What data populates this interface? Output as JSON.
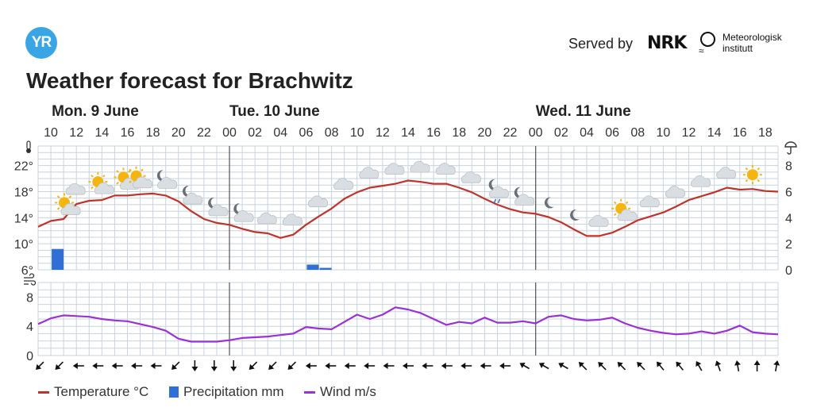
{
  "header": {
    "logo_text": "YR",
    "served_by": "Served by",
    "nrk_text": "NRK",
    "met_line1": "Meteorologisk",
    "met_line2": "institutt",
    "title": "Weather forecast for Brachwitz"
  },
  "legend": {
    "temperature": "Temperature °C",
    "precipitation": "Precipitation mm",
    "wind": "Wind m/s"
  },
  "colors": {
    "temperature": "#c0332b",
    "precipitation": "#2f6fd6",
    "wind": "#9b30d9",
    "grid": "#c8d3dc",
    "day_divider": "#555555",
    "sun": "#f5b50e",
    "cloud": "#d9dee3",
    "moon": "#6a6f75"
  },
  "chart_data": [
    {
      "type": "line",
      "title": "",
      "x_unit": "hour",
      "day_labels": [
        {
          "label": "Mon. 9 June",
          "start_hour": 10
        },
        {
          "label": "Tue. 10 June",
          "start_hour": 24
        },
        {
          "label": "Wed. 11 June",
          "start_hour": 48
        }
      ],
      "x_ticks": [
        "10",
        "12",
        "14",
        "16",
        "18",
        "20",
        "22",
        "00",
        "02",
        "04",
        "06",
        "08",
        "10",
        "12",
        "14",
        "16",
        "18",
        "20",
        "22",
        "00",
        "02",
        "04",
        "06",
        "08",
        "10",
        "12",
        "14",
        "16",
        "18"
      ],
      "ylim": [
        6,
        25
      ],
      "y_ticks": [
        6,
        10,
        14,
        18,
        22
      ],
      "y_tick_labels": [
        "6°",
        "10°",
        "14°",
        "18°",
        "22°"
      ],
      "y2lim": [
        0,
        9.5
      ],
      "y2_ticks": [
        0,
        2,
        4,
        6,
        8
      ],
      "y2_tick_labels": [
        "0",
        "2",
        "4",
        "6",
        "8"
      ],
      "y_axis_icons": [
        "thermometer-icon",
        "umbrella-icon"
      ],
      "grid": true,
      "legend_position": "bottom-left",
      "series": [
        {
          "name": "Temperature °C",
          "kind": "line",
          "axis": "left",
          "x": [
            9,
            10,
            11,
            12,
            13,
            14,
            15,
            16,
            17,
            18,
            19,
            20,
            21,
            22,
            23,
            24,
            25,
            26,
            27,
            28,
            29,
            30,
            31,
            32,
            33,
            34,
            35,
            36,
            37,
            38,
            39,
            40,
            41,
            42,
            43,
            44,
            45,
            46,
            47,
            48,
            49,
            50,
            51,
            52,
            53,
            54,
            55,
            56,
            57,
            58,
            59,
            60,
            61,
            62,
            63,
            64,
            65,
            66,
            67
          ],
          "values": [
            12.6,
            13.5,
            13.8,
            16.1,
            16.6,
            16.7,
            17.4,
            17.4,
            17.6,
            17.7,
            17.4,
            16.5,
            15.0,
            13.8,
            13.2,
            12.9,
            12.3,
            11.8,
            11.6,
            10.9,
            11.4,
            12.9,
            14.2,
            15.4,
            16.9,
            17.9,
            18.6,
            18.9,
            19.2,
            19.7,
            19.5,
            19.2,
            19.2,
            18.6,
            17.9,
            16.9,
            16.0,
            15.3,
            14.8,
            14.6,
            14.1,
            13.3,
            12.2,
            11.2,
            11.2,
            11.7,
            12.6,
            13.6,
            14.2,
            14.8,
            15.7,
            16.7,
            17.3,
            17.9,
            18.6,
            18.3,
            18.4,
            18.1,
            18.0
          ]
        },
        {
          "name": "Precipitation mm",
          "kind": "bar",
          "axis": "right",
          "x": [
            10,
            30,
            31
          ],
          "values": [
            1.6,
            0.4,
            0.15
          ]
        }
      ],
      "weather_icons": [
        {
          "hour": 10,
          "icon": "partly-sunny-icon"
        },
        {
          "hour": 12,
          "icon": "cloud-icon"
        },
        {
          "hour": 14,
          "icon": "partly-sunny-icon"
        },
        {
          "hour": 16,
          "icon": "partly-sunny-icon"
        },
        {
          "hour": 17,
          "icon": "partly-sunny-icon"
        },
        {
          "hour": 19,
          "icon": "partly-moon-icon"
        },
        {
          "hour": 21,
          "icon": "partly-moon-icon"
        },
        {
          "hour": 23,
          "icon": "partly-moon-icon"
        },
        {
          "hour": 25,
          "icon": "partly-moon-icon"
        },
        {
          "hour": 27,
          "icon": "cloud-icon"
        },
        {
          "hour": 29,
          "icon": "cloud-icon"
        },
        {
          "hour": 31,
          "icon": "cloud-icon"
        },
        {
          "hour": 33,
          "icon": "cloud-icon"
        },
        {
          "hour": 35,
          "icon": "cloud-icon"
        },
        {
          "hour": 37,
          "icon": "cloud-icon"
        },
        {
          "hour": 39,
          "icon": "cloud-icon"
        },
        {
          "hour": 41,
          "icon": "cloud-icon"
        },
        {
          "hour": 43,
          "icon": "cloud-icon"
        },
        {
          "hour": 45,
          "icon": "cloud-rain-moon-icon"
        },
        {
          "hour": 47,
          "icon": "partly-moon-icon"
        },
        {
          "hour": 49,
          "icon": "moon-icon"
        },
        {
          "hour": 51,
          "icon": "moon-icon"
        },
        {
          "hour": 53,
          "icon": "cloud-icon"
        },
        {
          "hour": 55,
          "icon": "partly-sunny-icon"
        },
        {
          "hour": 57,
          "icon": "cloud-icon"
        },
        {
          "hour": 59,
          "icon": "cloud-icon"
        },
        {
          "hour": 61,
          "icon": "cloud-icon"
        },
        {
          "hour": 63,
          "icon": "cloud-icon"
        },
        {
          "hour": 65,
          "icon": "sun-icon"
        }
      ]
    },
    {
      "type": "line",
      "title": "",
      "ylim": [
        0,
        10
      ],
      "y_ticks": [
        0,
        4,
        8
      ],
      "y_tick_labels": [
        "0",
        "4",
        "8"
      ],
      "y_axis_icons": [
        "wind-icon"
      ],
      "grid": true,
      "series": [
        {
          "name": "Wind m/s",
          "x": [
            9,
            10,
            11,
            12,
            13,
            14,
            15,
            16,
            17,
            18,
            19,
            20,
            21,
            22,
            23,
            24,
            25,
            26,
            27,
            28,
            29,
            30,
            31,
            32,
            33,
            34,
            35,
            36,
            37,
            38,
            39,
            40,
            41,
            42,
            43,
            44,
            45,
            46,
            47,
            48,
            49,
            50,
            51,
            52,
            53,
            54,
            55,
            56,
            57,
            58,
            59,
            60,
            61,
            62,
            63,
            64,
            65,
            66,
            67
          ],
          "values": [
            4.3,
            5.1,
            5.5,
            5.4,
            5.3,
            5.0,
            4.8,
            4.7,
            4.3,
            3.9,
            3.4,
            2.3,
            1.9,
            1.9,
            1.9,
            2.1,
            2.4,
            2.5,
            2.6,
            2.8,
            3.0,
            3.9,
            3.7,
            3.6,
            4.6,
            5.6,
            5.0,
            5.6,
            6.6,
            6.3,
            5.8,
            5.0,
            4.2,
            4.6,
            4.4,
            5.2,
            4.5,
            4.5,
            4.7,
            4.4,
            5.3,
            5.5,
            5.0,
            4.8,
            4.9,
            5.2,
            4.4,
            3.8,
            3.4,
            3.1,
            2.9,
            3.0,
            3.3,
            3.0,
            3.4,
            4.1,
            3.2,
            3.0,
            2.9
          ]
        }
      ],
      "wind_direction_degrees": [
        225,
        225,
        270,
        270,
        270,
        270,
        270,
        225,
        180,
        180,
        180,
        225,
        225,
        225,
        270,
        270,
        270,
        270,
        270,
        270,
        270,
        270,
        270,
        270,
        270,
        300,
        300,
        300,
        315,
        315,
        315,
        315,
        320,
        320,
        330,
        340,
        350,
        0,
        10
      ]
    }
  ]
}
